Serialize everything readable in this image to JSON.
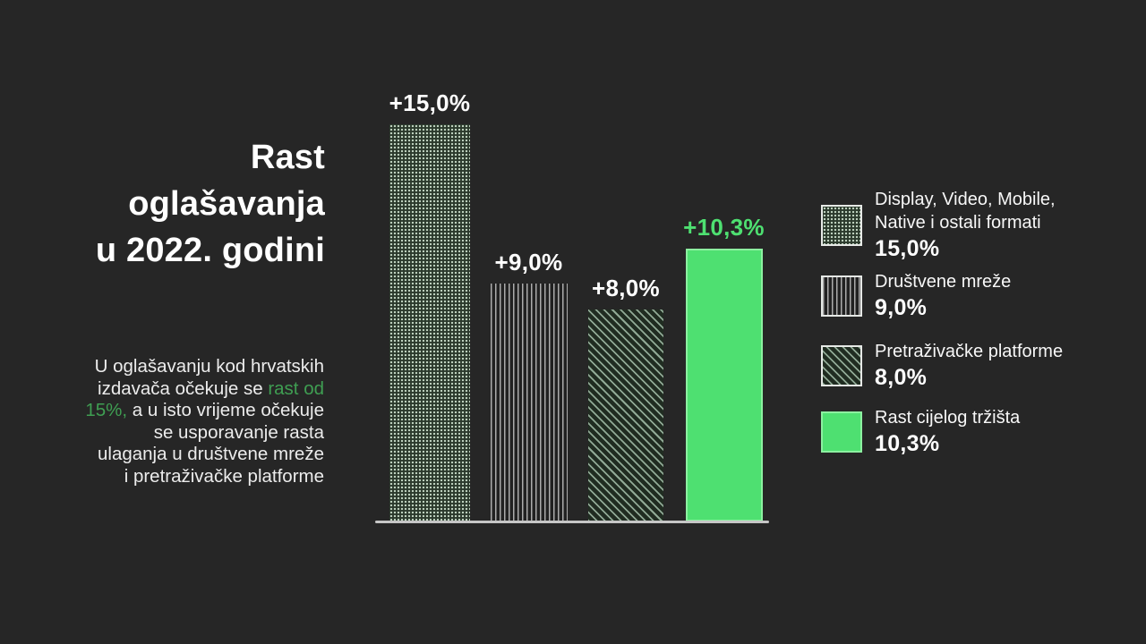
{
  "colors": {
    "background": "#262626",
    "accent_bright_green": "#4ee071",
    "muted_green_text": "#3f9e52",
    "axis_line": "#c6c6c6",
    "text_white": "#ffffff"
  },
  "title": {
    "lines": [
      "Rast",
      "oglašavanja",
      "u 2022. godini"
    ]
  },
  "paragraph": {
    "lines": [
      [
        {
          "text": "U oglašavanju kod hrvatskih",
          "highlight": false
        }
      ],
      [
        {
          "text": "izdavača očekuje se ",
          "highlight": false
        },
        {
          "text": "rast od",
          "highlight": true
        }
      ],
      [
        {
          "text": "15%,",
          "highlight": true
        },
        {
          "text": " a u isto vrijeme očekuje",
          "highlight": false
        }
      ],
      [
        {
          "text": "se usporavanje rasta",
          "highlight": false
        }
      ],
      [
        {
          "text": "ulaganja u društvene mreže",
          "highlight": false
        }
      ],
      [
        {
          "text": "i pretraživačke platforme",
          "highlight": false
        }
      ]
    ]
  },
  "chart_data": {
    "type": "bar",
    "title": "Rast oglašavanja u 2022. godini",
    "categories": [
      "Display, Video, Mobile, Native i ostali formati",
      "Društvene mreže",
      "Pretraživačke platforme",
      "Rast cijelog tržišta"
    ],
    "values": [
      15.0,
      9.0,
      8.0,
      10.3
    ],
    "bar_labels": [
      "+15,0%",
      "+9,0%",
      "+8,0%",
      "+10,3%"
    ],
    "patterns": [
      "dots",
      "vlines",
      "diag",
      "solid"
    ],
    "label_colors": [
      "white",
      "white",
      "white",
      "green"
    ],
    "unit": "%",
    "ylim": [
      0,
      15
    ],
    "grid": false,
    "axis_labels_shown": false,
    "legend_position": "right"
  },
  "legend": {
    "items": [
      {
        "label_lines": [
          "Display, Video, Mobile,",
          "Native i ostali formati"
        ],
        "value": "15,0%",
        "pattern": "dots"
      },
      {
        "label_lines": [
          "Društvene mreže"
        ],
        "value": "9,0%",
        "pattern": "vlines"
      },
      {
        "label_lines": [
          "Pretraživačke platforme"
        ],
        "value": "8,0%",
        "pattern": "diag"
      },
      {
        "label_lines": [
          "Rast cijelog tržišta"
        ],
        "value": "10,3%",
        "pattern": "solid"
      }
    ]
  }
}
